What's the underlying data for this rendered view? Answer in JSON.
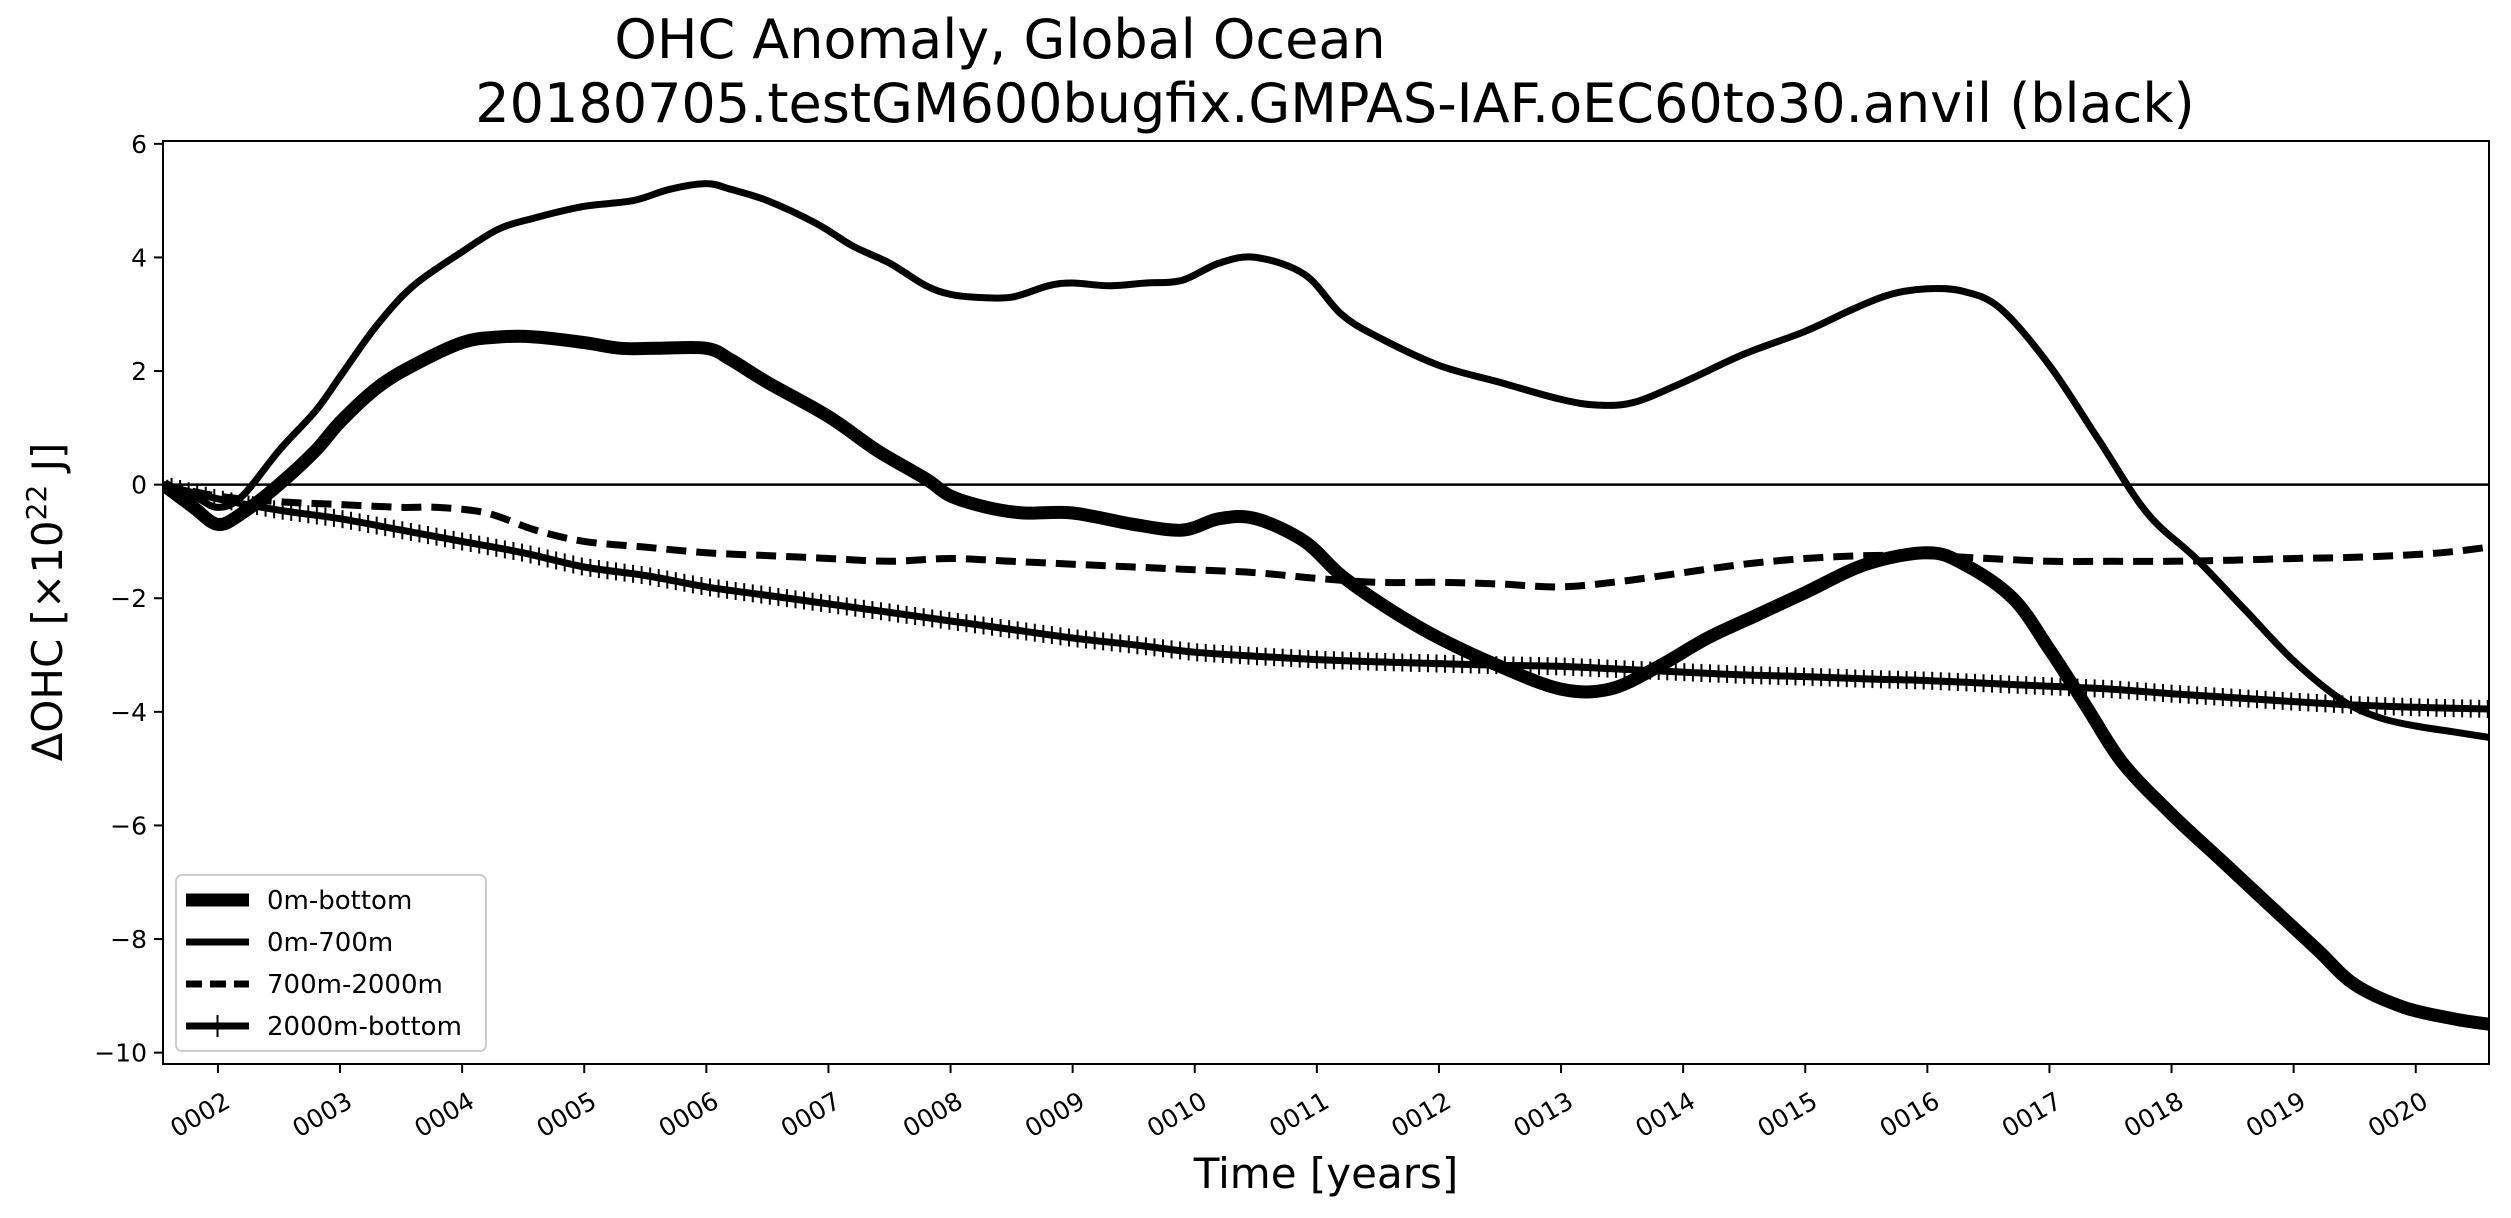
{
  "chart_data": {
    "type": "line",
    "title": "OHC Anomaly, Global Ocean",
    "subtitle": "20180705.testGM600bugfix.GMPAS-IAF.oEC60to30.anvil (black)",
    "xlabel": "Time [years]",
    "ylabel_main": "ΔOHC [×10",
    "ylabel_sup": "22",
    "ylabel_end": " J]",
    "xlim": [
      1.55,
      20.6
    ],
    "ylim": [
      -10.2,
      6.05
    ],
    "x_ticks": [
      2,
      3,
      4,
      5,
      6,
      7,
      8,
      9,
      10,
      11,
      12,
      13,
      14,
      15,
      16,
      17,
      18,
      19,
      20
    ],
    "x_tick_labels": [
      "0002",
      "0003",
      "0004",
      "0005",
      "0006",
      "0007",
      "0008",
      "0009",
      "0010",
      "0011",
      "0012",
      "0013",
      "0014",
      "0015",
      "0016",
      "0017",
      "0018",
      "0019",
      "0020"
    ],
    "y_ticks": [
      -10,
      -8,
      -6,
      -4,
      -2,
      0,
      2,
      4,
      6
    ],
    "y_tick_labels": [
      "−10",
      "−8",
      "−6",
      "−4",
      "−2",
      "0",
      "2",
      "4",
      "6"
    ],
    "zero_line": 0,
    "grid": false,
    "legend_position": "lower-left",
    "colors": {
      "line": "#000000",
      "background": "#ffffff"
    },
    "series": [
      {
        "name": "0m-bottom",
        "style": "thick",
        "x": [
          1.55,
          1.8,
          2.0,
          2.2,
          2.5,
          2.8,
          3.0,
          3.3,
          3.6,
          4.0,
          4.3,
          4.6,
          5.0,
          5.3,
          5.6,
          6.0,
          6.2,
          6.5,
          7.0,
          7.4,
          7.8,
          8.0,
          8.3,
          8.6,
          9.0,
          9.5,
          9.9,
          10.2,
          10.5,
          10.9,
          11.2,
          11.6,
          12.0,
          12.5,
          13.0,
          13.4,
          13.8,
          14.2,
          14.6,
          15.0,
          15.5,
          16.0,
          16.3,
          16.7,
          17.0,
          17.3,
          17.6,
          18.0,
          18.4,
          18.8,
          19.2,
          19.5,
          19.9,
          20.3,
          20.6
        ],
        "values": [
          0.0,
          -0.4,
          -0.7,
          -0.5,
          0.0,
          0.6,
          1.1,
          1.7,
          2.1,
          2.5,
          2.6,
          2.6,
          2.5,
          2.4,
          2.4,
          2.4,
          2.2,
          1.8,
          1.2,
          0.6,
          0.1,
          -0.2,
          -0.4,
          -0.5,
          -0.5,
          -0.7,
          -0.8,
          -0.6,
          -0.6,
          -1.0,
          -1.6,
          -2.2,
          -2.7,
          -3.2,
          -3.6,
          -3.6,
          -3.2,
          -2.7,
          -2.3,
          -1.9,
          -1.4,
          -1.2,
          -1.4,
          -2.0,
          -2.9,
          -3.9,
          -4.9,
          -5.8,
          -6.6,
          -7.4,
          -8.2,
          -8.8,
          -9.2,
          -9.4,
          -9.5
        ]
      },
      {
        "name": "0m-700m",
        "style": "medium",
        "x": [
          1.55,
          1.8,
          2.0,
          2.2,
          2.5,
          2.8,
          3.0,
          3.3,
          3.6,
          4.0,
          4.3,
          4.6,
          5.0,
          5.4,
          5.7,
          6.0,
          6.2,
          6.5,
          6.9,
          7.2,
          7.5,
          7.8,
          8.0,
          8.2,
          8.5,
          8.8,
          9.0,
          9.3,
          9.6,
          9.9,
          10.2,
          10.5,
          10.9,
          11.2,
          11.5,
          12.0,
          12.5,
          13.0,
          13.3,
          13.6,
          14.0,
          14.5,
          15.0,
          15.4,
          15.7,
          16.0,
          16.3,
          16.6,
          17.0,
          17.4,
          17.8,
          18.2,
          18.6,
          19.0,
          19.4,
          19.7,
          20.0,
          20.3,
          20.6
        ],
        "values": [
          0.0,
          -0.2,
          -0.4,
          -0.2,
          0.6,
          1.3,
          1.9,
          2.8,
          3.5,
          4.1,
          4.5,
          4.7,
          4.9,
          5.0,
          5.2,
          5.3,
          5.2,
          5.0,
          4.6,
          4.2,
          3.9,
          3.5,
          3.35,
          3.3,
          3.3,
          3.5,
          3.55,
          3.5,
          3.55,
          3.6,
          3.9,
          4.0,
          3.7,
          3.0,
          2.6,
          2.1,
          1.8,
          1.5,
          1.4,
          1.45,
          1.8,
          2.3,
          2.7,
          3.1,
          3.35,
          3.45,
          3.4,
          3.1,
          2.1,
          0.8,
          -0.5,
          -1.3,
          -2.2,
          -3.1,
          -3.8,
          -4.1,
          -4.25,
          -4.35,
          -4.45
        ]
      },
      {
        "name": "700m-2000m",
        "style": "dashed",
        "x": [
          1.55,
          2.0,
          2.5,
          3.0,
          3.5,
          3.8,
          4.2,
          4.6,
          5.0,
          5.5,
          6.0,
          6.5,
          7.0,
          7.5,
          8.0,
          8.5,
          9.0,
          9.5,
          10.0,
          10.5,
          11.0,
          11.5,
          12.0,
          12.5,
          13.0,
          13.5,
          14.0,
          14.5,
          15.0,
          15.5,
          16.0,
          16.5,
          17.0,
          17.5,
          18.0,
          18.5,
          19.0,
          19.5,
          20.0,
          20.3,
          20.6
        ],
        "values": [
          0.0,
          -0.2,
          -0.3,
          -0.35,
          -0.4,
          -0.4,
          -0.5,
          -0.8,
          -1.0,
          -1.1,
          -1.2,
          -1.25,
          -1.3,
          -1.35,
          -1.3,
          -1.35,
          -1.4,
          -1.45,
          -1.5,
          -1.55,
          -1.65,
          -1.72,
          -1.72,
          -1.75,
          -1.8,
          -1.7,
          -1.55,
          -1.4,
          -1.3,
          -1.25,
          -1.25,
          -1.3,
          -1.35,
          -1.35,
          -1.35,
          -1.33,
          -1.3,
          -1.28,
          -1.23,
          -1.18,
          -1.1
        ]
      },
      {
        "name": "2000m-bottom",
        "style": "plus-marker",
        "x": [
          1.55,
          2.0,
          2.5,
          3.0,
          3.5,
          4.0,
          4.5,
          5.0,
          5.5,
          6.0,
          6.5,
          7.0,
          7.5,
          8.0,
          8.5,
          9.0,
          9.5,
          10.0,
          10.5,
          11.0,
          11.5,
          12.0,
          12.5,
          13.0,
          13.5,
          14.0,
          14.5,
          15.0,
          15.5,
          16.0,
          16.5,
          17.0,
          17.5,
          18.0,
          18.5,
          19.0,
          19.5,
          20.0,
          20.6
        ],
        "values": [
          0.0,
          -0.25,
          -0.45,
          -0.6,
          -0.8,
          -1.0,
          -1.2,
          -1.45,
          -1.6,
          -1.8,
          -1.95,
          -2.1,
          -2.25,
          -2.4,
          -2.55,
          -2.7,
          -2.82,
          -2.95,
          -3.02,
          -3.08,
          -3.12,
          -3.15,
          -3.18,
          -3.2,
          -3.25,
          -3.3,
          -3.35,
          -3.38,
          -3.42,
          -3.45,
          -3.5,
          -3.55,
          -3.6,
          -3.68,
          -3.75,
          -3.82,
          -3.88,
          -3.92,
          -3.95
        ]
      }
    ]
  }
}
